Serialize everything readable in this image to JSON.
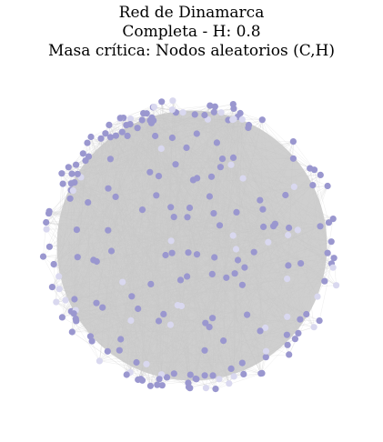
{
  "title": {
    "line1": "Red de Dinamarca",
    "line2": "Completa - H: 0.8",
    "line3": "Masa crítica: Nodos aleatorios (C,H)"
  },
  "colors": {
    "background": "#ffffff",
    "edge": "#c9c9c9",
    "hull_fill": "#cfcfcf",
    "node_primary": "#9a97cf",
    "node_light": "#d9d8ef"
  }
}
